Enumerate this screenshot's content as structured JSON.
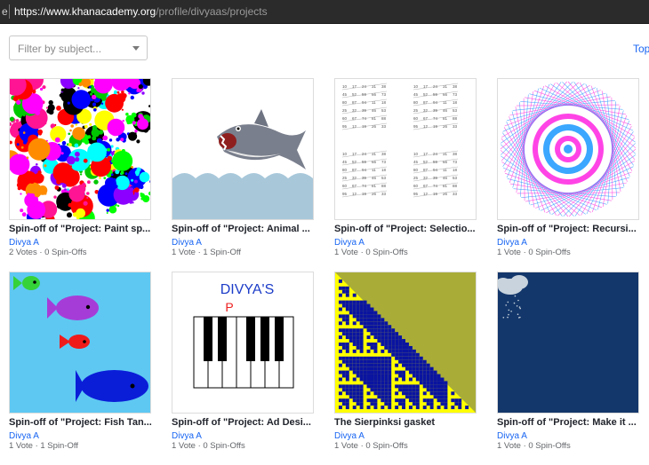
{
  "browser": {
    "url_lead": "e",
    "url_host": "https://www.khanacademy.org",
    "url_path": "/profile/divyaas/projects"
  },
  "filter": {
    "placeholder": "Filter by subject..."
  },
  "top_link": "Top",
  "colors": {
    "link": "#1865f2",
    "text": "#21242c",
    "muted": "#626569",
    "border": "#dcdcdc"
  },
  "projects": [
    {
      "title": "Spin-off of \"Project: Paint sp...",
      "author": "Divya A",
      "stats": "2 Votes · 0 Spin-Offs",
      "thumb": "paint-splatter"
    },
    {
      "title": "Spin-off of \"Project: Animal ...",
      "author": "Divya A",
      "stats": "1 Vote · 1 Spin-Off",
      "thumb": "shark"
    },
    {
      "title": "Spin-off of \"Project: Selectio...",
      "author": "Divya A",
      "stats": "1 Vote · 0 Spin-Offs",
      "thumb": "number-grid"
    },
    {
      "title": "Spin-off of \"Project: Recursi...",
      "author": "Divya A",
      "stats": "1 Vote · 0 Spin-Offs",
      "thumb": "recursive-pattern"
    },
    {
      "title": "Spin-off of \"Project: Fish Tan...",
      "author": "Divya A",
      "stats": "1 Vote · 1 Spin-Off",
      "thumb": "fish-tank"
    },
    {
      "title": "Spin-off of \"Project: Ad Desi...",
      "author": "Divya A",
      "stats": "1 Vote · 0 Spin-Offs",
      "thumb": "piano-ad",
      "thumb_text": "DIVYA'S",
      "thumb_letter": "P"
    },
    {
      "title": "The Sierpinksi gasket",
      "author": "Divya A",
      "stats": "1 Vote · 0 Spin-Offs",
      "thumb": "sierpinski"
    },
    {
      "title": "Spin-off of \"Project: Make it ...",
      "author": "Divya A",
      "stats": "1 Vote · 0 Spin-Offs",
      "thumb": "rain-cloud"
    }
  ]
}
